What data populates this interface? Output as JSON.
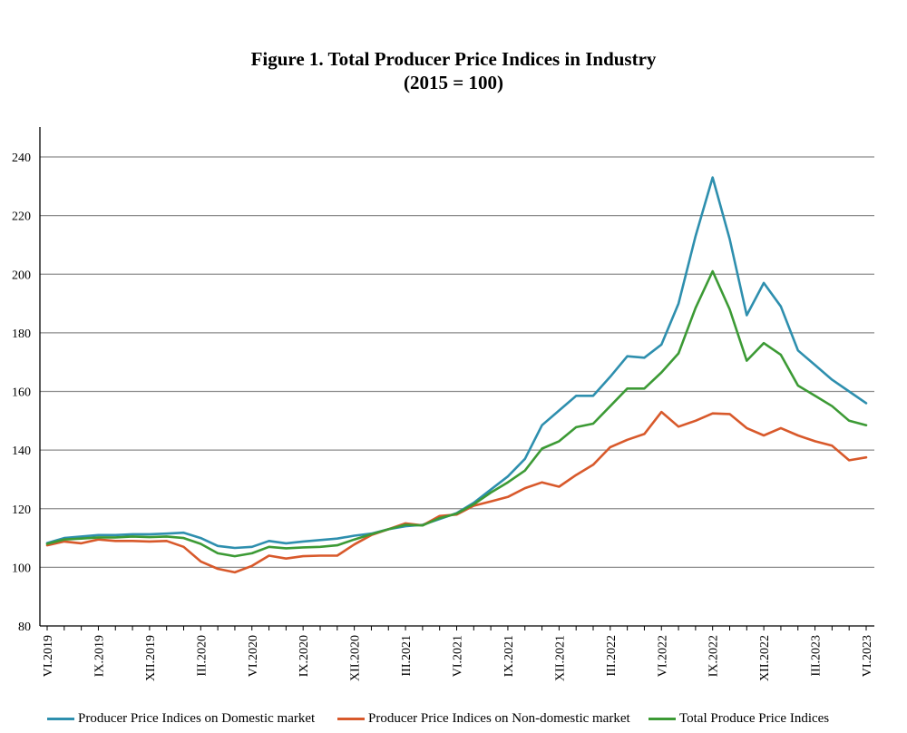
{
  "chart_data": {
    "type": "line",
    "title": "Figure 1. Total Producer Price Indices in Industry",
    "subtitle": "(2015 = 100)",
    "xlabel": "",
    "ylabel": "",
    "ylim": [
      80,
      240
    ],
    "yticks": [
      80,
      100,
      120,
      140,
      160,
      180,
      200,
      220,
      240
    ],
    "grid": "horizontal",
    "legend_position": "bottom",
    "x": [
      "VI.2019",
      "VII.2019",
      "VIII.2019",
      "IX.2019",
      "X.2019",
      "XI.2019",
      "XII.2019",
      "I.2020",
      "II.2020",
      "III.2020",
      "IV.2020",
      "V.2020",
      "VI.2020",
      "VII.2020",
      "VIII.2020",
      "IX.2020",
      "X.2020",
      "XI.2020",
      "XII.2020",
      "I.2021",
      "II.2021",
      "III.2021",
      "IV.2021",
      "V.2021",
      "VI.2021",
      "VII.2021",
      "VIII.2021",
      "IX.2021",
      "X.2021",
      "XI.2021",
      "XII.2021",
      "I.2022",
      "II.2022",
      "III.2022",
      "IV.2022",
      "V.2022",
      "VI.2022",
      "VII.2022",
      "VIII.2022",
      "IX.2022",
      "X.2022",
      "XI.2022",
      "XII.2022",
      "I.2023",
      "II.2023",
      "III.2023",
      "IV.2023",
      "V.2023",
      "VI.2023"
    ],
    "x_tick_labels": [
      "VI.2019",
      "IX.2019",
      "XII.2019",
      "III.2020",
      "VI.2020",
      "IX.2020",
      "XII.2020",
      "III.2021",
      "VI.2021",
      "IX.2021",
      "XII.2021",
      "III.2022",
      "VI.2022",
      "IX.2022",
      "XII.2022",
      "III.2023",
      "VI.2023"
    ],
    "series": [
      {
        "name": "Producer Price Indices on Domestic market",
        "color": "#2e8fae",
        "values": [
          108.3,
          110.0,
          110.5,
          111.0,
          111.0,
          111.3,
          111.3,
          111.5,
          111.8,
          110.0,
          107.3,
          106.6,
          107.0,
          109.0,
          108.2,
          108.8,
          109.3,
          109.8,
          110.8,
          111.5,
          113.0,
          114.0,
          114.5,
          116.5,
          118.5,
          122.0,
          126.5,
          131.0,
          137.0,
          148.5,
          153.5,
          158.5,
          158.5,
          165.0,
          172.0,
          171.5,
          176.0,
          190.0,
          213.0,
          233.0,
          212.0,
          186.0,
          197.0,
          189.0,
          174.0,
          169.0,
          164.0,
          160.0,
          156.0
        ]
      },
      {
        "name": "Producer Price Indices on Non-domestic market",
        "color": "#d8592b",
        "values": [
          107.5,
          108.8,
          108.2,
          109.5,
          109.0,
          109.0,
          108.8,
          109.0,
          107.0,
          102.0,
          99.5,
          98.3,
          100.5,
          104.0,
          103.0,
          103.8,
          104.0,
          104.0,
          107.8,
          111.0,
          113.0,
          115.0,
          114.3,
          117.5,
          118.0,
          121.0,
          122.5,
          124.0,
          127.0,
          129.0,
          127.5,
          131.5,
          135.0,
          141.0,
          143.5,
          145.5,
          153.0,
          148.0,
          150.0,
          152.5,
          152.3,
          147.5,
          145.0,
          147.5,
          145.0,
          143.0,
          141.5,
          136.5,
          137.5
        ]
      },
      {
        "name": "Total Produce Price Indices",
        "color": "#3c9a35",
        "values": [
          108.0,
          109.5,
          109.8,
          110.2,
          110.2,
          110.5,
          110.3,
          110.5,
          110.0,
          108.0,
          104.8,
          103.8,
          104.8,
          107.0,
          106.5,
          106.8,
          107.0,
          107.5,
          109.5,
          111.3,
          113.0,
          114.5,
          114.3,
          116.8,
          118.3,
          121.5,
          125.5,
          129.0,
          133.0,
          140.5,
          143.0,
          147.8,
          149.0,
          155.0,
          161.0,
          161.0,
          166.5,
          173.0,
          188.5,
          201.0,
          188.0,
          170.5,
          176.5,
          172.5,
          162.0,
          158.5,
          155.0,
          150.0,
          148.5
        ]
      }
    ]
  }
}
